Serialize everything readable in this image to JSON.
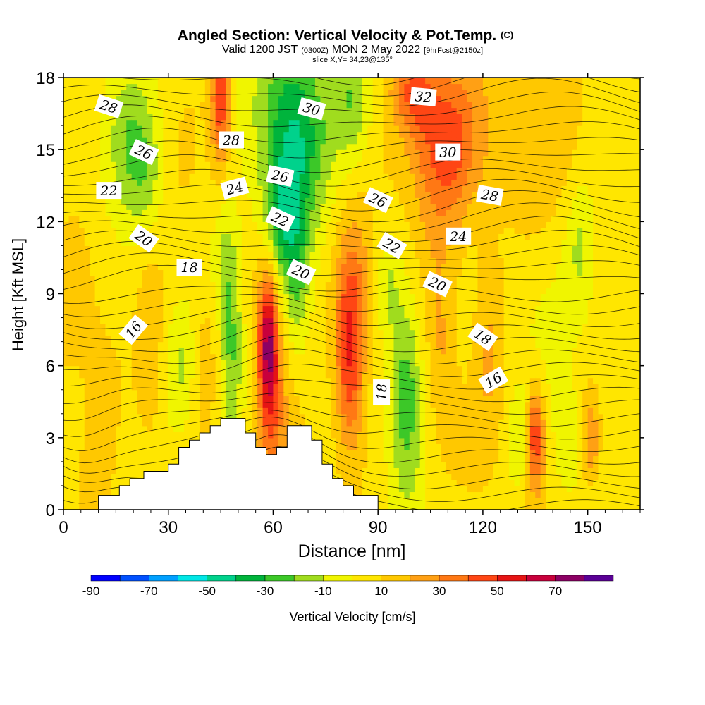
{
  "chart_data": {
    "type": "heatmap",
    "title": "Angled Section: Vertical Velocity & Pot.Temp.",
    "title_mark": "(C)",
    "subtitle": {
      "valid": "Valid 1200 JST",
      "utc": "(0300Z)",
      "date": "MON 2 May 2022",
      "fcst": "[9hrFcst@2150z]"
    },
    "slice": "slice X,Y= 34,23@135°",
    "xlabel": "Distance [nm]",
    "ylabel": "Height [Kft MSL]",
    "xlim": [
      0,
      165
    ],
    "ylim": [
      0,
      18
    ],
    "x_ticks": [
      0,
      30,
      60,
      90,
      120,
      150
    ],
    "y_ticks": [
      0,
      3,
      6,
      9,
      12,
      15,
      18
    ],
    "colorbar": {
      "label": "Vertical Velocity [cm/s]",
      "tick_labels": [
        "-90",
        "-70",
        "-50",
        "-30",
        "-10",
        "10",
        "30",
        "50",
        "70"
      ],
      "tick_values": [
        -90,
        -70,
        -50,
        -30,
        -10,
        10,
        30,
        50,
        70
      ],
      "bins": [
        {
          "from": -90,
          "to": -80,
          "color": "#0000ff"
        },
        {
          "from": -80,
          "to": -70,
          "color": "#0050ff"
        },
        {
          "from": -70,
          "to": -60,
          "color": "#00a0ff"
        },
        {
          "from": -60,
          "to": -50,
          "color": "#00e6e6"
        },
        {
          "from": -50,
          "to": -40,
          "color": "#00d28c"
        },
        {
          "from": -40,
          "to": -30,
          "color": "#00b43c"
        },
        {
          "from": -30,
          "to": -20,
          "color": "#3cc828"
        },
        {
          "from": -20,
          "to": -10,
          "color": "#a0dc1e"
        },
        {
          "from": -10,
          "to": 0,
          "color": "#f0f500"
        },
        {
          "from": 0,
          "to": 10,
          "color": "#ffe600"
        },
        {
          "from": 10,
          "to": 20,
          "color": "#ffc800"
        },
        {
          "from": 20,
          "to": 30,
          "color": "#ffa014"
        },
        {
          "from": 30,
          "to": 40,
          "color": "#ff7814"
        },
        {
          "from": 40,
          "to": 50,
          "color": "#ff4614"
        },
        {
          "from": 50,
          "to": 60,
          "color": "#e61414"
        },
        {
          "from": 60,
          "to": 70,
          "color": "#c8003c"
        },
        {
          "from": 70,
          "to": 80,
          "color": "#8c0064"
        },
        {
          "from": 80,
          "to": 90,
          "color": "#5a0096"
        }
      ]
    },
    "features": [
      {
        "x": 18,
        "y": 16.0,
        "sx": 5,
        "sy": 2.5,
        "w": -22
      },
      {
        "x": 24,
        "y": 14.0,
        "sx": 4,
        "sy": 2.0,
        "w": -18
      },
      {
        "x": 34,
        "y": 6.0,
        "sx": 3,
        "sy": 1.8,
        "w": -14
      },
      {
        "x": 25,
        "y": 6.5,
        "sx": 3,
        "sy": 3.0,
        "w": 14
      },
      {
        "x": 40,
        "y": 5.5,
        "sx": 2.5,
        "sy": 2.0,
        "w": 10
      },
      {
        "x": 48,
        "y": 7.0,
        "sx": 2.5,
        "sy": 2.8,
        "w": -32
      },
      {
        "x": 46,
        "y": 10.5,
        "sx": 3,
        "sy": 1.5,
        "w": -14
      },
      {
        "x": 45,
        "y": 17.0,
        "sx": 2,
        "sy": 1.8,
        "w": 45
      },
      {
        "x": 58.5,
        "y": 7.0,
        "sx": 2,
        "sy": 2.2,
        "w": 58
      },
      {
        "x": 60,
        "y": 4.0,
        "sx": 3,
        "sy": 3.0,
        "w": 22
      },
      {
        "x": 66,
        "y": 16.0,
        "sx": 7,
        "sy": 3.0,
        "w": -45
      },
      {
        "x": 63,
        "y": 12.0,
        "sx": 4,
        "sy": 1.8,
        "w": -30
      },
      {
        "x": 67,
        "y": 9.0,
        "sx": 2.5,
        "sy": 2.0,
        "w": -18
      },
      {
        "x": 83,
        "y": 17.0,
        "sx": 4,
        "sy": 2.0,
        "w": -26
      },
      {
        "x": 82,
        "y": 6.0,
        "sx": 3,
        "sy": 2.5,
        "w": 45
      },
      {
        "x": 83,
        "y": 9.5,
        "sx": 4,
        "sy": 2.0,
        "w": 22
      },
      {
        "x": 98,
        "y": 5.0,
        "sx": 3.5,
        "sy": 3.0,
        "w": -32
      },
      {
        "x": 93,
        "y": 9.5,
        "sx": 2.5,
        "sy": 1.5,
        "w": -14
      },
      {
        "x": 109,
        "y": 15.5,
        "sx": 7,
        "sy": 2.5,
        "w": 42
      },
      {
        "x": 100,
        "y": 17.5,
        "sx": 4,
        "sy": 1.2,
        "w": 30
      },
      {
        "x": 108,
        "y": 6.5,
        "sx": 3,
        "sy": 3.0,
        "w": 14
      },
      {
        "x": 122,
        "y": 7.0,
        "sx": 3,
        "sy": 3.0,
        "w": 14
      },
      {
        "x": 130,
        "y": 2.8,
        "sx": 2.5,
        "sy": 1.5,
        "w": -14
      },
      {
        "x": 135,
        "y": 3.0,
        "sx": 1.8,
        "sy": 1.5,
        "w": 46
      },
      {
        "x": 144,
        "y": 2.8,
        "sx": 2.5,
        "sy": 1.5,
        "w": -14
      },
      {
        "x": 151,
        "y": 3.0,
        "sx": 2,
        "sy": 1.5,
        "w": 26
      },
      {
        "x": 148,
        "y": 11.0,
        "sx": 3,
        "sy": 2.0,
        "w": -16
      },
      {
        "x": 130,
        "y": 15.0,
        "sx": 10,
        "sy": 3.0,
        "w": 12
      },
      {
        "x": 8,
        "y": 9.0,
        "sx": 7,
        "sy": 3.0,
        "w": 8
      },
      {
        "x": 145,
        "y": 8.0,
        "sx": 15,
        "sy": 3.5,
        "w": -4
      }
    ],
    "terrain": [
      [
        10,
        0.6
      ],
      [
        16,
        0.6
      ],
      [
        16,
        1.0
      ],
      [
        19,
        1.0
      ],
      [
        19,
        1.3
      ],
      [
        23,
        1.3
      ],
      [
        23,
        1.6
      ],
      [
        30,
        1.6
      ],
      [
        30,
        1.9
      ],
      [
        33,
        1.9
      ],
      [
        33,
        2.6
      ],
      [
        36,
        2.6
      ],
      [
        36,
        2.9
      ],
      [
        39,
        2.9
      ],
      [
        39,
        3.2
      ],
      [
        42,
        3.2
      ],
      [
        42,
        3.5
      ],
      [
        45,
        3.5
      ],
      [
        45,
        3.8
      ],
      [
        52,
        3.8
      ],
      [
        52,
        3.2
      ],
      [
        55,
        3.2
      ],
      [
        55,
        2.6
      ],
      [
        58,
        2.6
      ],
      [
        58,
        2.3
      ],
      [
        61,
        2.3
      ],
      [
        61,
        2.6
      ],
      [
        64,
        2.6
      ],
      [
        64,
        3.5
      ],
      [
        71,
        3.5
      ],
      [
        71,
        2.9
      ],
      [
        74,
        2.9
      ],
      [
        74,
        1.9
      ],
      [
        77,
        1.9
      ],
      [
        77,
        1.3
      ],
      [
        80,
        1.3
      ],
      [
        80,
        1.0
      ],
      [
        83,
        1.0
      ],
      [
        83,
        0.6
      ],
      [
        90,
        0.6
      ],
      [
        90,
        0
      ]
    ],
    "contour_labels": [
      {
        "text": "28",
        "x": 13,
        "y": 16.8,
        "rot": 18
      },
      {
        "text": "26",
        "x": 23,
        "y": 14.9,
        "rot": 25
      },
      {
        "text": "22",
        "x": 13,
        "y": 13.3,
        "rot": 0
      },
      {
        "text": "20",
        "x": 23,
        "y": 11.3,
        "rot": 35
      },
      {
        "text": "18",
        "x": 36,
        "y": 10.1,
        "rot": 0
      },
      {
        "text": "16",
        "x": 20,
        "y": 7.5,
        "rot": -50
      },
      {
        "text": "28",
        "x": 48,
        "y": 15.4,
        "rot": 0
      },
      {
        "text": "24",
        "x": 49,
        "y": 13.4,
        "rot": -15
      },
      {
        "text": "30",
        "x": 71,
        "y": 16.7,
        "rot": 15
      },
      {
        "text": "26",
        "x": 62,
        "y": 13.9,
        "rot": 12
      },
      {
        "text": "22",
        "x": 62,
        "y": 12.1,
        "rot": 25
      },
      {
        "text": "20",
        "x": 68,
        "y": 9.9,
        "rot": 25
      },
      {
        "text": "32",
        "x": 103,
        "y": 17.2,
        "rot": 5
      },
      {
        "text": "30",
        "x": 110,
        "y": 14.9,
        "rot": 0
      },
      {
        "text": "26",
        "x": 90,
        "y": 12.9,
        "rot": 25
      },
      {
        "text": "28",
        "x": 122,
        "y": 13.1,
        "rot": 10
      },
      {
        "text": "22",
        "x": 94,
        "y": 11.0,
        "rot": 30
      },
      {
        "text": "24",
        "x": 113,
        "y": 11.4,
        "rot": 0
      },
      {
        "text": "20",
        "x": 107,
        "y": 9.4,
        "rot": 25
      },
      {
        "text": "18",
        "x": 120,
        "y": 7.2,
        "rot": 35
      },
      {
        "text": "16",
        "x": 123,
        "y": 5.4,
        "rot": -30
      },
      {
        "text": "18",
        "x": 91,
        "y": 4.9,
        "rot": -90
      }
    ]
  }
}
